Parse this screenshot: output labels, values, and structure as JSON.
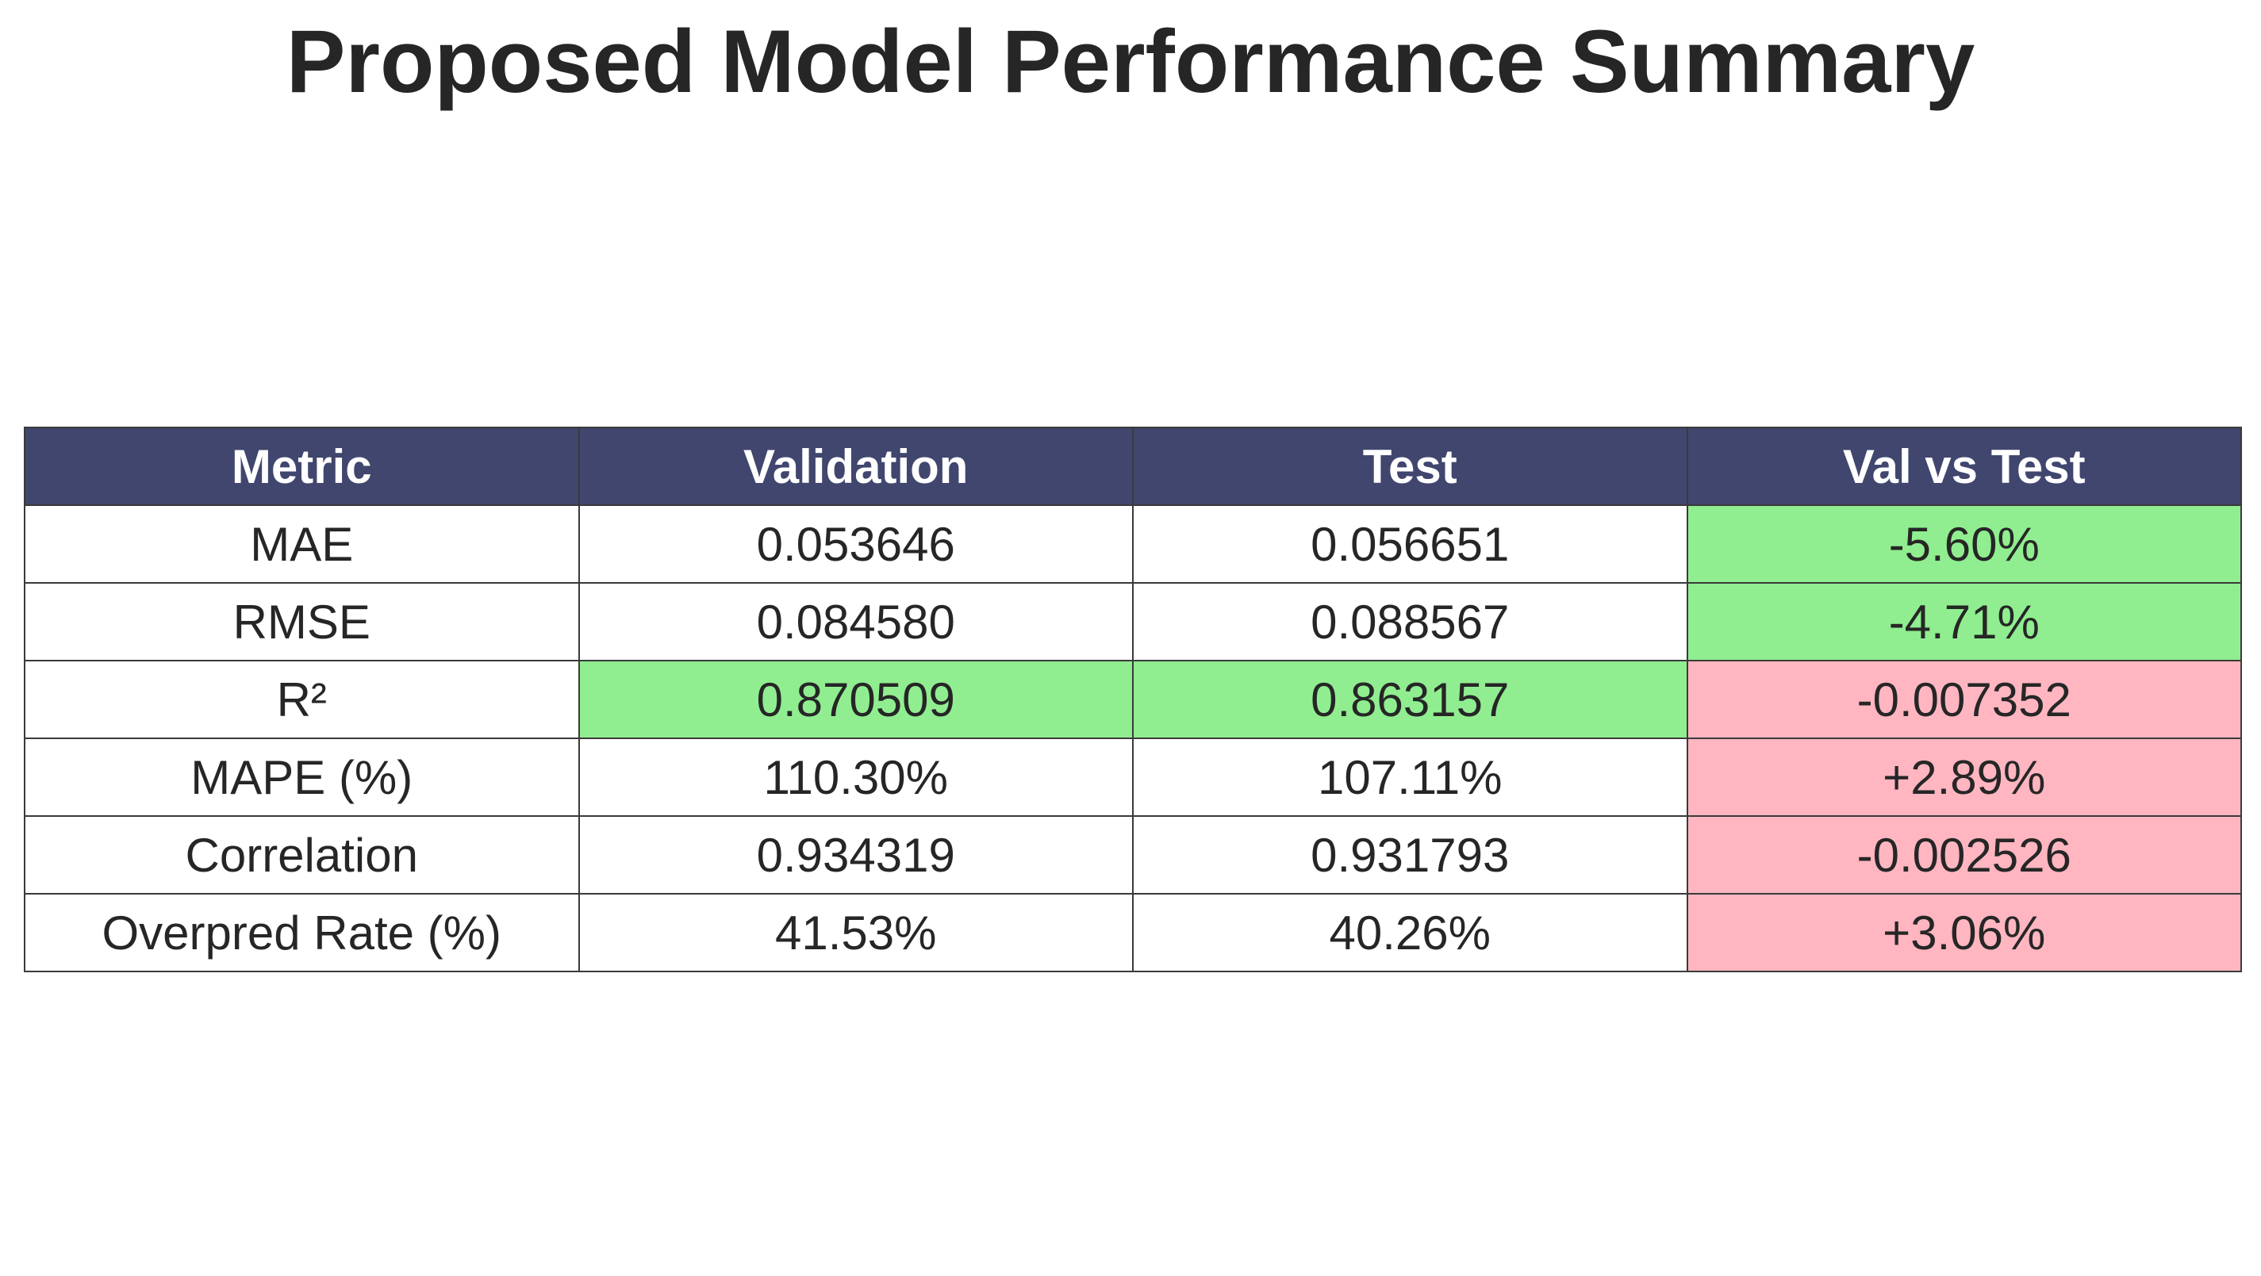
{
  "title": "Proposed Model Performance Summary",
  "colors": {
    "header_bg": "#40466e",
    "header_text": "#ffffff",
    "cell_bg": "#ffffff",
    "good": "#90ee90",
    "bad": "#ffb6c1",
    "border": "#3a3a3a"
  },
  "chart_data": {
    "type": "table",
    "title": "Proposed Model Performance Summary",
    "columns": [
      "Metric",
      "Validation",
      "Test",
      "Val vs Test"
    ],
    "rows": [
      {
        "cells": [
          "MAE",
          "0.053646",
          "0.056651",
          "-5.60%"
        ],
        "highlight": [
          "none",
          "none",
          "none",
          "good"
        ]
      },
      {
        "cells": [
          "RMSE",
          "0.084580",
          "0.088567",
          "-4.71%"
        ],
        "highlight": [
          "none",
          "none",
          "none",
          "good"
        ]
      },
      {
        "cells": [
          "R²",
          "0.870509",
          "0.863157",
          "-0.007352"
        ],
        "highlight": [
          "none",
          "good",
          "good",
          "bad"
        ]
      },
      {
        "cells": [
          "MAPE (%)",
          "110.30%",
          "107.11%",
          "+2.89%"
        ],
        "highlight": [
          "none",
          "none",
          "none",
          "bad"
        ]
      },
      {
        "cells": [
          "Correlation",
          "0.934319",
          "0.931793",
          "-0.002526"
        ],
        "highlight": [
          "none",
          "none",
          "none",
          "bad"
        ]
      },
      {
        "cells": [
          "Overpred Rate (%)",
          "41.53%",
          "40.26%",
          "+3.06%"
        ],
        "highlight": [
          "none",
          "none",
          "none",
          "bad"
        ]
      }
    ]
  }
}
